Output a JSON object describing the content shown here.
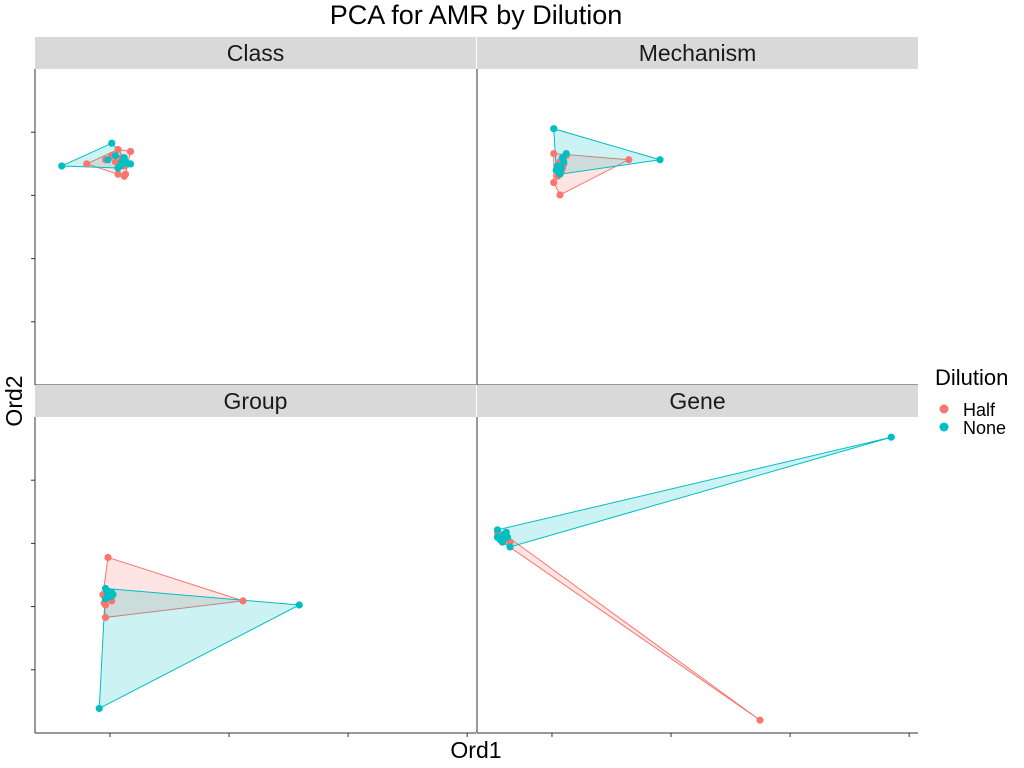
{
  "chart_data": {
    "type": "scatter",
    "title": "PCA for AMR by Dilution",
    "xlabel": "Ord1",
    "ylabel": "Ord2",
    "grid": false,
    "legend": {
      "title": "Dilution",
      "position": "right",
      "entries": [
        {
          "name": "Half",
          "color": "#F8766D"
        },
        {
          "name": "None",
          "color": "#00BFC4"
        }
      ]
    },
    "xlim": [
      -0.35,
      6.9
    ],
    "ylim": [
      -0.55,
      0.85
    ],
    "series_colors": {
      "Half": "#F8766D",
      "None": "#00BFC4"
    },
    "panels": [
      {
        "name": "Class",
        "points": {
          "Half": [
            [
              0.0,
              0.5
            ],
            [
              0.1,
              0.49
            ],
            [
              -0.25,
              0.43
            ],
            [
              0.0,
              0.38
            ],
            [
              0.05,
              0.37
            ],
            [
              -0.05,
              0.47
            ],
            [
              0.03,
              0.46
            ],
            [
              -0.1,
              0.45
            ],
            [
              0.05,
              0.42
            ],
            [
              0.06,
              0.38
            ],
            [
              -0.02,
              0.44
            ],
            [
              0.04,
              0.45
            ]
          ],
          "None": [
            [
              -0.05,
              0.53
            ],
            [
              -0.45,
              0.42
            ],
            [
              0.1,
              0.43
            ],
            [
              0.05,
              0.46
            ],
            [
              -0.08,
              0.45
            ],
            [
              0.0,
              0.41
            ],
            [
              0.08,
              0.43
            ],
            [
              0.03,
              0.44
            ],
            [
              0.02,
              0.42
            ],
            [
              -0.02,
              0.47
            ],
            [
              0.06,
              0.44
            ]
          ]
        }
      },
      {
        "name": "Mechanism",
        "points": {
          "Half": [
            [
              0.0,
              0.44
            ],
            [
              0.55,
              0.45
            ],
            [
              -0.05,
              0.34
            ],
            [
              0.0,
              0.28
            ],
            [
              -0.05,
              0.48
            ],
            [
              0.05,
              0.47
            ],
            [
              0.02,
              0.41
            ],
            [
              0.01,
              0.39
            ],
            [
              -0.02,
              0.37
            ],
            [
              0.03,
              0.43
            ]
          ],
          "None": [
            [
              -0.05,
              0.6
            ],
            [
              0.8,
              0.45
            ],
            [
              -0.03,
              0.4
            ],
            [
              0.0,
              0.38
            ],
            [
              0.05,
              0.48
            ],
            [
              0.02,
              0.46
            ],
            [
              -0.02,
              0.42
            ],
            [
              0.03,
              0.44
            ],
            [
              0.0,
              0.39
            ],
            [
              0.01,
              0.41
            ]
          ]
        }
      },
      {
        "name": "Group",
        "points": {
          "Half": [
            [
              -0.08,
              0.21
            ],
            [
              1.0,
              0.0
            ],
            [
              -0.1,
              -0.08
            ],
            [
              -0.12,
              0.03
            ],
            [
              -0.1,
              -0.02
            ],
            [
              -0.05,
              0.0
            ],
            [
              -0.09,
              0.02
            ],
            [
              -0.07,
              0.01
            ],
            [
              -0.11,
              -0.01
            ]
          ],
          "None": [
            [
              -0.1,
              0.06
            ],
            [
              1.45,
              -0.02
            ],
            [
              -0.15,
              -0.52
            ],
            [
              -0.05,
              0.04
            ],
            [
              -0.08,
              0.03
            ],
            [
              -0.06,
              0.02
            ],
            [
              -0.1,
              0.01
            ],
            [
              -0.04,
              0.03
            ],
            [
              -0.09,
              0.05
            ]
          ]
        }
      },
      {
        "name": "Gene",
        "points": {
          "Half": [
            [
              -0.1,
              0.04
            ],
            [
              2.0,
              -0.73
            ],
            [
              -0.05,
              0.02
            ],
            [
              -0.08,
              0.03
            ],
            [
              -0.02,
              0.01
            ],
            [
              -0.06,
              0.0
            ],
            [
              -0.1,
              0.02
            ],
            [
              0.0,
              0.0
            ],
            [
              -0.04,
              0.03
            ]
          ],
          "None": [
            [
              -0.1,
              0.05
            ],
            [
              3.05,
              0.43
            ],
            [
              0.0,
              -0.02
            ],
            [
              -0.1,
              0.02
            ],
            [
              -0.05,
              0.03
            ],
            [
              -0.03,
              0.04
            ],
            [
              -0.02,
              0.02
            ],
            [
              -0.08,
              0.01
            ],
            [
              -0.06,
              0.0
            ]
          ]
        }
      }
    ],
    "panel_x_ranges": {
      "Class": [
        -0.6,
        2.8
      ],
      "Mechanism": [
        -0.6,
        2.8
      ],
      "Group": [
        -0.6,
        2.8
      ],
      "Gene": [
        -0.2,
        3.2
      ]
    },
    "panel_y_ranges": {
      "Class": [
        -0.6,
        0.85
      ],
      "Mechanism": [
        -0.6,
        0.85
      ],
      "Group": [
        -0.6,
        0.85
      ],
      "Gene": [
        -0.75,
        0.48
      ]
    }
  }
}
